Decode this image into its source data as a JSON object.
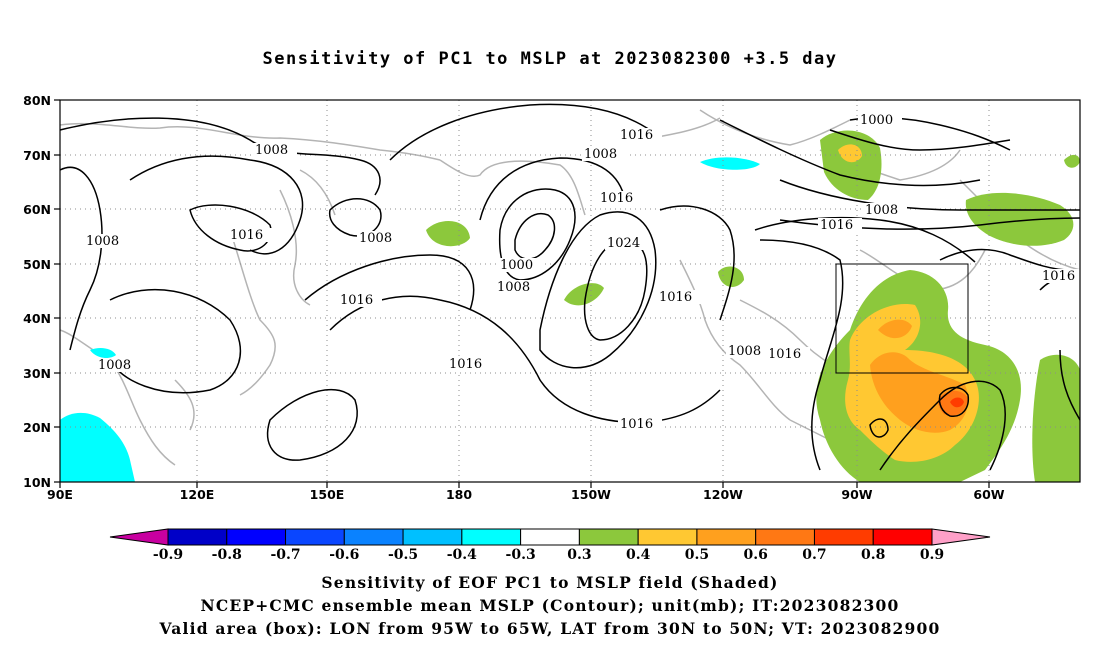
{
  "title": "Sensitivity of PC1 to MSLP at 2023082300 +3.5 day",
  "map": {
    "lon_range": [
      "90E",
      "30W"
    ],
    "lat_range": [
      "10N",
      "80N"
    ],
    "lat_ticks": [
      "80N",
      "70N",
      "60N",
      "50N",
      "40N",
      "30N",
      "20N",
      "10N"
    ],
    "lon_ticks": [
      "90E",
      "120E",
      "150E",
      "180",
      "150W",
      "120W",
      "90W",
      "60W"
    ],
    "valid_box": {
      "lon": [
        "95W",
        "65W"
      ],
      "lat": [
        "30N",
        "50N"
      ]
    },
    "contour_labels": [
      "1000",
      "1016",
      "1008",
      "1008",
      "1016",
      "1008",
      "1008",
      "1016",
      "1024",
      "1000",
      "1008",
      "1016",
      "1016",
      "1016",
      "1008",
      "1016",
      "1016",
      "1008",
      "1016",
      "1016",
      "1008"
    ]
  },
  "colorbar": {
    "labels": [
      "-0.9",
      "-0.8",
      "-0.7",
      "-0.6",
      "-0.5",
      "-0.4",
      "-0.3",
      "0.3",
      "0.4",
      "0.5",
      "0.6",
      "0.7",
      "0.8",
      "0.9"
    ],
    "colors": [
      "#0000c8",
      "#0000ff",
      "#0a46ff",
      "#0a82ff",
      "#00c0ff",
      "#00ffff",
      "#ffffff",
      "#8cc83c",
      "#ffc832",
      "#ffa01e",
      "#ff7814",
      "#ff3c00",
      "#ff0000"
    ],
    "low_end_color": "#c800a0",
    "high_end_color": "#ffa0c8"
  },
  "caption": {
    "line1": "Sensitivity of EOF PC1 to MSLP field (Shaded)",
    "line2": "NCEP+CMC ensemble mean MSLP (Contour); unit(mb); IT:2023082300",
    "line3": "Valid area (box): LON from 95W to 65W, LAT from 30N to 50N; VT: 2023082900"
  }
}
